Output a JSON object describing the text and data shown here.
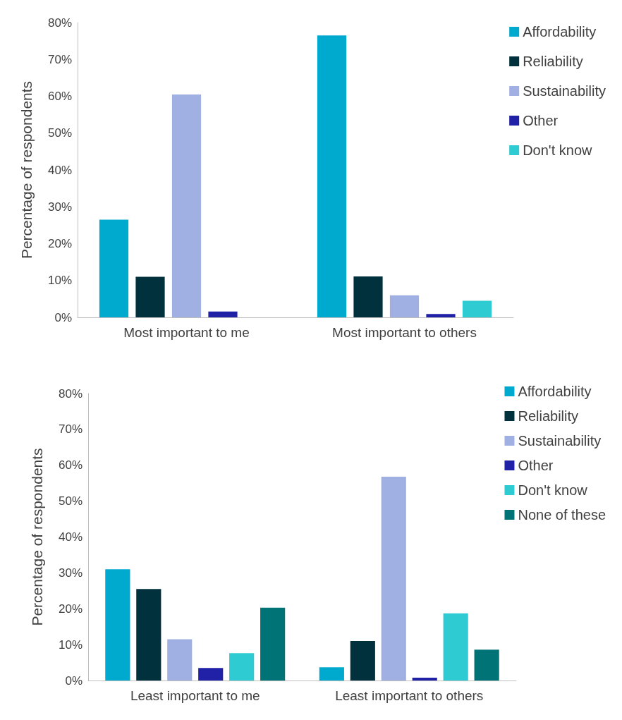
{
  "chart_data": [
    {
      "type": "bar",
      "ylabel": "Percentage of respondents",
      "categories": [
        "Most important to me",
        "Most important to others"
      ],
      "series": [
        {
          "name": "Affordability",
          "color": "#00a9ce",
          "values": [
            26.5,
            76.5
          ]
        },
        {
          "name": "Reliability",
          "color": "#00313c",
          "values": [
            11,
            11.1
          ]
        },
        {
          "name": "Sustainability",
          "color": "#a1b0e3",
          "values": [
            60.5,
            6
          ]
        },
        {
          "name": "Other",
          "color": "#2121a8",
          "values": [
            1.6,
            0.9
          ]
        },
        {
          "name": "Don't know",
          "color": "#2ecbd2",
          "values": [
            0,
            4.5
          ]
        }
      ],
      "ylim": [
        0,
        80
      ],
      "yticks": [
        {
          "value": 0,
          "label": "0%"
        },
        {
          "value": 10,
          "label": "10%"
        },
        {
          "value": 20,
          "label": "20%"
        },
        {
          "value": 30,
          "label": "30%"
        },
        {
          "value": 40,
          "label": "40%"
        },
        {
          "value": 50,
          "label": "50%"
        },
        {
          "value": 60,
          "label": "60%"
        },
        {
          "value": 70,
          "label": "70%"
        },
        {
          "value": 80,
          "label": "80%"
        }
      ],
      "grid": false,
      "legend": "top right"
    },
    {
      "type": "bar",
      "ylabel": "Percentage of respondents",
      "categories": [
        "Least important to me",
        "Least important to others"
      ],
      "series": [
        {
          "name": "Affordability",
          "color": "#00a9ce",
          "values": [
            31,
            3.7
          ]
        },
        {
          "name": "Reliability",
          "color": "#00313c",
          "values": [
            25.5,
            11
          ]
        },
        {
          "name": "Sustainability",
          "color": "#a1b0e3",
          "values": [
            11.5,
            56.8
          ]
        },
        {
          "name": "Other",
          "color": "#2121a8",
          "values": [
            3.5,
            0.8
          ]
        },
        {
          "name": "Don't know",
          "color": "#2ecbd2",
          "values": [
            7.6,
            18.7
          ]
        },
        {
          "name": "None of these",
          "color": "#007377",
          "values": [
            20.3,
            8.6
          ]
        }
      ],
      "ylim": [
        0,
        80
      ],
      "yticks": [
        {
          "value": 0,
          "label": "0%"
        },
        {
          "value": 10,
          "label": "10%"
        },
        {
          "value": 20,
          "label": "20%"
        },
        {
          "value": 30,
          "label": "30%"
        },
        {
          "value": 40,
          "label": "40%"
        },
        {
          "value": 50,
          "label": "50%"
        },
        {
          "value": 60,
          "label": "60%"
        },
        {
          "value": 70,
          "label": "70%"
        },
        {
          "value": 80,
          "label": "80%"
        }
      ],
      "grid": false,
      "legend": "top right"
    }
  ]
}
